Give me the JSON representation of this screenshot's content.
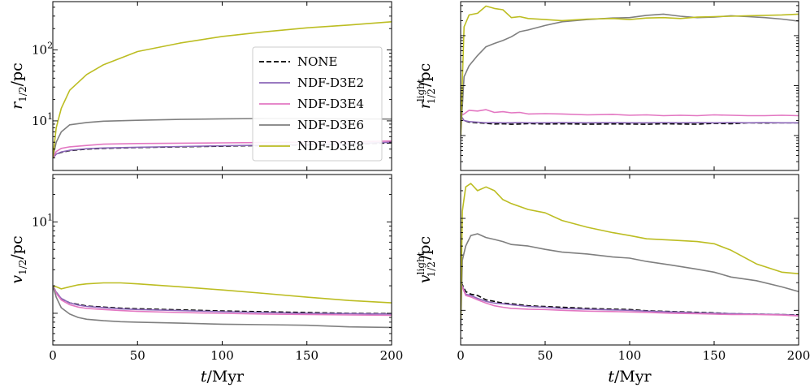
{
  "legend": [
    {
      "key": "none",
      "label": "NONE",
      "color": "#000000",
      "dashed": true
    },
    {
      "key": "e2",
      "label": "NDF-D3E2",
      "color": "#8c67b8",
      "dashed": false
    },
    {
      "key": "e4",
      "label": "NDF-D3E4",
      "color": "#e377c2",
      "dashed": false
    },
    {
      "key": "e6",
      "label": "NDF-D3E6",
      "color": "#7f7f7f",
      "dashed": false
    },
    {
      "key": "e8",
      "label": "NDF-D3E8",
      "color": "#bcbd22",
      "dashed": false
    }
  ],
  "chart_data": [
    {
      "id": "tl",
      "type": "line",
      "yscale": "log",
      "xlim": [
        0,
        200
      ],
      "ylim": [
        2.0,
        480
      ],
      "ylabel": "r_{1/2}/pc",
      "xticks": [
        0,
        50,
        100,
        150,
        200
      ],
      "xticklabels": [
        "0",
        "50",
        "100",
        "150",
        "200"
      ],
      "show_xticklabels": false,
      "yticks": [
        10,
        100
      ],
      "yticklabels": [
        "10^1",
        "10^2"
      ],
      "x": [
        0,
        2,
        5,
        10,
        20,
        30,
        50,
        75,
        100,
        125,
        150,
        175,
        200
      ],
      "series": [
        {
          "key": "none",
          "values": [
            3.0,
            3.4,
            3.6,
            3.8,
            4.0,
            4.1,
            4.2,
            4.3,
            4.4,
            4.5,
            4.6,
            4.7,
            4.9
          ]
        },
        {
          "key": "e2",
          "values": [
            3.0,
            3.4,
            3.65,
            3.85,
            4.05,
            4.15,
            4.25,
            4.35,
            4.45,
            4.55,
            4.65,
            4.75,
            5.0
          ]
        },
        {
          "key": "e4",
          "values": [
            3.0,
            3.7,
            4.1,
            4.3,
            4.5,
            4.7,
            4.8,
            4.85,
            4.9,
            4.95,
            5.0,
            5.05,
            5.2
          ]
        },
        {
          "key": "e6",
          "values": [
            3.0,
            5.0,
            7.0,
            8.8,
            9.5,
            9.9,
            10.2,
            10.5,
            10.7,
            10.8,
            10.8,
            10.7,
            10.6
          ]
        },
        {
          "key": "e8",
          "values": [
            3.0,
            8.0,
            15.0,
            27.0,
            45.0,
            62.0,
            95.0,
            125.0,
            155.0,
            180.0,
            205.0,
            225.0,
            250.0
          ]
        }
      ]
    },
    {
      "id": "tr",
      "type": "line",
      "yscale": "log",
      "xlim": [
        0,
        200
      ],
      "ylim": [
        0.2,
        480
      ],
      "ylabel": "r^{light}_{1/2}/pc",
      "xticks": [
        0,
        50,
        100,
        150,
        200
      ],
      "xticklabels": [
        "0",
        "50",
        "100",
        "150",
        "200"
      ],
      "show_xticklabels": false,
      "yticks": [],
      "yticklabels": [],
      "x": [
        0,
        2,
        5,
        10,
        15,
        20,
        25,
        30,
        35,
        40,
        50,
        60,
        75,
        90,
        100,
        110,
        120,
        130,
        140,
        150,
        160,
        170,
        180,
        190,
        200
      ],
      "series": [
        {
          "key": "none",
          "values": [
            2.5,
            2.0,
            1.85,
            1.8,
            1.75,
            1.7,
            1.72,
            1.68,
            1.7,
            1.73,
            1.7,
            1.72,
            1.69,
            1.71,
            1.7,
            1.68,
            1.72,
            1.7,
            1.69,
            1.75,
            1.72,
            1.8,
            1.78,
            1.8,
            1.8
          ]
        },
        {
          "key": "e2",
          "values": [
            2.5,
            2.0,
            1.9,
            1.85,
            1.8,
            1.82,
            1.8,
            1.8,
            1.82,
            1.8,
            1.8,
            1.82,
            1.8,
            1.81,
            1.8,
            1.8,
            1.82,
            1.8,
            1.81,
            1.8,
            1.82,
            1.8,
            1.81,
            1.8,
            1.8
          ]
        },
        {
          "key": "e4",
          "values": [
            2.5,
            2.7,
            3.2,
            3.1,
            3.3,
            2.9,
            3.0,
            2.85,
            2.9,
            2.7,
            2.75,
            2.7,
            2.6,
            2.65,
            2.55,
            2.6,
            2.5,
            2.55,
            2.5,
            2.6,
            2.55,
            2.5,
            2.5,
            2.55,
            2.5
          ]
        },
        {
          "key": "e6",
          "values": [
            1.0,
            15.0,
            25.0,
            40.0,
            60.0,
            70.0,
            80.0,
            95.0,
            120.0,
            130.0,
            160.0,
            190.0,
            210.0,
            225.0,
            230.0,
            255.0,
            270.0,
            245.0,
            230.0,
            235.0,
            250.0,
            240.0,
            230.0,
            215.0,
            195.0
          ]
        },
        {
          "key": "e8",
          "values": [
            1.0,
            150.0,
            260.0,
            280.0,
            390.0,
            350.0,
            330.0,
            230.0,
            240.0,
            220.0,
            210.0,
            200.0,
            215.0,
            220.0,
            210.0,
            225.0,
            230.0,
            220.0,
            235.0,
            240.0,
            245.0,
            250.0,
            255.0,
            260.0,
            270.0
          ]
        }
      ]
    },
    {
      "id": "bl",
      "type": "line",
      "yscale": "log",
      "xlim": [
        0,
        200
      ],
      "ylim": [
        0.45,
        33
      ],
      "ylabel": "v_{1/2}/pc",
      "xticks": [
        0,
        50,
        100,
        150,
        200
      ],
      "xticklabels": [
        "0",
        "50",
        "100",
        "150",
        "200"
      ],
      "show_xticklabels": true,
      "xlabel": "t/Myr",
      "yticks": [
        10
      ],
      "yticklabels": [
        "10^1"
      ],
      "x": [
        0,
        2,
        5,
        10,
        15,
        20,
        30,
        40,
        50,
        75,
        100,
        125,
        150,
        175,
        200
      ],
      "series": [
        {
          "key": "none",
          "values": [
            2.0,
            1.7,
            1.45,
            1.3,
            1.25,
            1.2,
            1.17,
            1.14,
            1.12,
            1.09,
            1.06,
            1.04,
            1.02,
            1.0,
            0.99
          ]
        },
        {
          "key": "e2",
          "values": [
            2.0,
            1.7,
            1.45,
            1.3,
            1.23,
            1.19,
            1.15,
            1.12,
            1.1,
            1.07,
            1.04,
            1.02,
            1.0,
            0.99,
            0.98
          ]
        },
        {
          "key": "e4",
          "values": [
            2.0,
            1.65,
            1.4,
            1.24,
            1.17,
            1.13,
            1.1,
            1.07,
            1.05,
            1.02,
            1.0,
            0.98,
            0.97,
            0.96,
            0.95
          ]
        },
        {
          "key": "e6",
          "values": [
            2.0,
            1.5,
            1.15,
            0.98,
            0.9,
            0.86,
            0.83,
            0.81,
            0.8,
            0.78,
            0.76,
            0.75,
            0.74,
            0.71,
            0.7
          ]
        },
        {
          "key": "e8",
          "values": [
            2.0,
            1.95,
            1.85,
            1.95,
            2.05,
            2.1,
            2.15,
            2.15,
            2.1,
            1.95,
            1.8,
            1.65,
            1.5,
            1.38,
            1.3
          ]
        }
      ]
    },
    {
      "id": "br",
      "type": "line",
      "yscale": "log",
      "xlim": [
        0,
        200
      ],
      "ylim": [
        0.42,
        30
      ],
      "ylabel": "v^{light}_{1/2}/pc",
      "xticks": [
        0,
        50,
        100,
        150,
        200
      ],
      "xticklabels": [
        "0",
        "50",
        "100",
        "150",
        "200"
      ],
      "show_xticklabels": true,
      "xlabel": "t/Myr",
      "yticks": [],
      "yticklabels": [],
      "x": [
        0,
        1,
        3,
        6,
        10,
        15,
        20,
        25,
        30,
        40,
        50,
        60,
        75,
        90,
        100,
        110,
        125,
        140,
        150,
        160,
        175,
        190,
        200
      ],
      "series": [
        {
          "key": "none",
          "values": [
            2.0,
            1.9,
            1.6,
            1.5,
            1.45,
            1.3,
            1.25,
            1.2,
            1.18,
            1.12,
            1.1,
            1.08,
            1.05,
            1.03,
            1.02,
            0.99,
            0.97,
            0.95,
            0.94,
            0.92,
            0.91,
            0.9,
            0.89
          ]
        },
        {
          "key": "e2",
          "values": [
            2.0,
            1.85,
            1.5,
            1.45,
            1.35,
            1.25,
            1.2,
            1.18,
            1.15,
            1.1,
            1.08,
            1.05,
            1.03,
            1.01,
            1.0,
            0.98,
            0.96,
            0.94,
            0.93,
            0.92,
            0.91,
            0.9,
            0.88
          ]
        },
        {
          "key": "e4",
          "values": [
            2.0,
            1.8,
            1.45,
            1.4,
            1.3,
            1.2,
            1.12,
            1.08,
            1.05,
            1.03,
            1.02,
            1.0,
            0.98,
            0.97,
            0.96,
            0.95,
            0.93,
            0.92,
            0.91,
            0.9,
            0.9,
            0.89,
            0.87
          ]
        },
        {
          "key": "e6",
          "values": [
            0.6,
            3.5,
            5.0,
            6.5,
            6.8,
            6.2,
            5.9,
            5.6,
            5.2,
            5.0,
            4.6,
            4.3,
            4.1,
            3.8,
            3.7,
            3.4,
            3.1,
            2.8,
            2.6,
            2.3,
            2.1,
            1.8,
            1.6
          ]
        },
        {
          "key": "e8",
          "values": [
            0.8,
            12.0,
            22.0,
            24.0,
            20.0,
            22.0,
            20.0,
            16.0,
            14.5,
            12.5,
            11.5,
            9.5,
            8.0,
            7.0,
            6.5,
            6.0,
            5.8,
            5.6,
            5.3,
            4.5,
            3.2,
            2.6,
            2.5
          ]
        }
      ]
    }
  ]
}
